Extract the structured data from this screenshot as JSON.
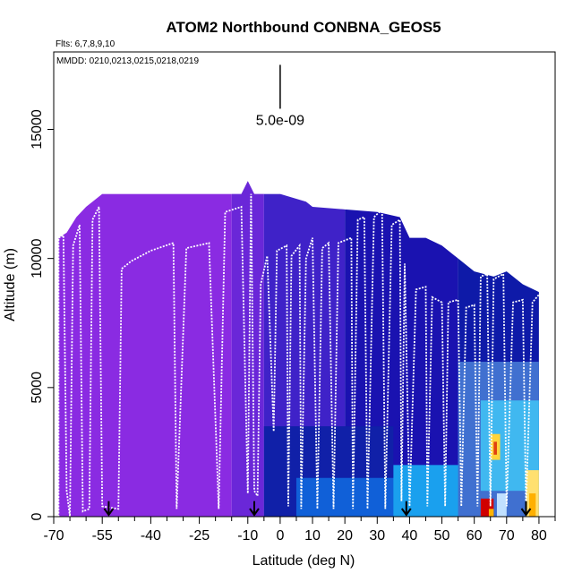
{
  "chart_data": {
    "type": "heatmap",
    "title": "ATOM2 Northbound CONBNA_GEOS5",
    "flights_note": "Flts: 6,7,8,9,10",
    "dates_note": "MMDD: 0210,0213,0215,0218,0219",
    "xlabel": "Latitude (deg N)",
    "ylabel": "Altitude (m)",
    "xlim": [
      -70,
      85
    ],
    "ylim": [
      0,
      18000
    ],
    "x_ticks": [
      -70,
      -55,
      -40,
      -25,
      -10,
      0,
      10,
      20,
      30,
      40,
      50,
      60,
      70,
      80
    ],
    "x_ticks_minor": [
      -65,
      -60,
      -50,
      -45,
      -35,
      -30,
      -20,
      -15,
      -5,
      5,
      15,
      25,
      35,
      45,
      55,
      65,
      75,
      85
    ],
    "y_ticks": [
      0,
      5000,
      10000,
      15000
    ],
    "scale_label": "5.0e-09",
    "scale_bar": {
      "lat": 0,
      "alt_top": 17500,
      "alt_bottom": 15800
    },
    "flight_markers_lat": [
      -53,
      -8,
      39,
      76
    ],
    "curtain_ceiling": [
      [
        -68.5,
        10800
      ],
      [
        -66,
        11000
      ],
      [
        -63,
        11600
      ],
      [
        -60,
        12000
      ],
      [
        -55,
        12500
      ],
      [
        -40,
        12500
      ],
      [
        -25,
        12500
      ],
      [
        -12,
        12500
      ],
      [
        -10,
        13000
      ],
      [
        -8,
        12500
      ],
      [
        0,
        12500
      ],
      [
        8,
        12200
      ],
      [
        10,
        12000
      ],
      [
        20,
        11900
      ],
      [
        30,
        11800
      ],
      [
        37,
        11600
      ],
      [
        40,
        10800
      ],
      [
        45,
        10800
      ],
      [
        50,
        10500
      ],
      [
        55,
        10000
      ],
      [
        60,
        9500
      ],
      [
        66,
        9300
      ],
      [
        70,
        9500
      ],
      [
        75,
        9000
      ],
      [
        80,
        8700
      ]
    ],
    "color_regions": [
      {
        "lat": [
          -68.5,
          -15
        ],
        "alt": [
          0,
          12500
        ],
        "color": "#8a2be2"
      },
      {
        "lat": [
          -15,
          -5
        ],
        "alt": [
          0,
          13000
        ],
        "color": "#6a27d8"
      },
      {
        "lat": [
          -5,
          20
        ],
        "alt": [
          0,
          12500
        ],
        "color": "#3f22c8"
      },
      {
        "lat": [
          20,
          55
        ],
        "alt": [
          0,
          11900
        ],
        "color": "#1a12b0"
      },
      {
        "lat": [
          55,
          80
        ],
        "alt": [
          0,
          10000
        ],
        "color": "#0e1aa8"
      },
      {
        "lat": [
          -5,
          35
        ],
        "alt": [
          0,
          3500
        ],
        "color": "#1020a8"
      },
      {
        "lat": [
          5,
          60
        ],
        "alt": [
          0,
          1500
        ],
        "color": "#1060d8"
      },
      {
        "lat": [
          35,
          80
        ],
        "alt": [
          0,
          2000
        ],
        "color": "#1aa0ee"
      },
      {
        "lat": [
          55,
          80
        ],
        "alt": [
          0,
          6000
        ],
        "color": "#4070d0"
      },
      {
        "lat": [
          62,
          80
        ],
        "alt": [
          1000,
          4500
        ],
        "color": "#40b8f0"
      },
      {
        "lat": [
          65,
          68
        ],
        "alt": [
          2200,
          3200
        ],
        "color": "#ffd43a"
      },
      {
        "lat": [
          66,
          67
        ],
        "alt": [
          2400,
          2900
        ],
        "color": "#e04010"
      },
      {
        "lat": [
          62,
          66
        ],
        "alt": [
          0,
          700
        ],
        "color": "#d00000"
      },
      {
        "lat": [
          64.5,
          66
        ],
        "alt": [
          0,
          300
        ],
        "color": "#ffb300"
      },
      {
        "lat": [
          67,
          70
        ],
        "alt": [
          0,
          900
        ],
        "color": "#c0e0ff"
      },
      {
        "lat": [
          76,
          80
        ],
        "alt": [
          0,
          1800
        ],
        "color": "#ffe070"
      },
      {
        "lat": [
          77,
          79
        ],
        "alt": [
          0,
          900
        ],
        "color": "#ffb000"
      }
    ],
    "flight_track": [
      [
        -68.5,
        0
      ],
      [
        -68.5,
        10800
      ],
      [
        -67,
        10900
      ],
      [
        -66,
        1000
      ],
      [
        -65,
        0
      ],
      [
        -64,
        10500
      ],
      [
        -62,
        11300
      ],
      [
        -61,
        200
      ],
      [
        -59,
        300
      ],
      [
        -58,
        11500
      ],
      [
        -56,
        12000
      ],
      [
        -55,
        400
      ],
      [
        -50,
        300
      ],
      [
        -49,
        9600
      ],
      [
        -46,
        9900
      ],
      [
        -40,
        10300
      ],
      [
        -33,
        10600
      ],
      [
        -32,
        300
      ],
      [
        -29,
        10400
      ],
      [
        -22,
        10600
      ],
      [
        -19,
        300
      ],
      [
        -17,
        11800
      ],
      [
        -12,
        12000
      ],
      [
        -10,
        900
      ],
      [
        -9,
        12500
      ],
      [
        -8,
        1000
      ],
      [
        -7,
        800
      ],
      [
        -6,
        9000
      ],
      [
        -4,
        10100
      ],
      [
        -2,
        3300
      ],
      [
        -1,
        10300
      ],
      [
        2,
        10500
      ],
      [
        2.5,
        400
      ],
      [
        3.5,
        10100
      ],
      [
        6,
        10500
      ],
      [
        6.5,
        300
      ],
      [
        8,
        10000
      ],
      [
        10,
        10800
      ],
      [
        11.5,
        300
      ],
      [
        13,
        10400
      ],
      [
        15,
        10600
      ],
      [
        16.5,
        300
      ],
      [
        18,
        10600
      ],
      [
        22,
        10800
      ],
      [
        22.5,
        300
      ],
      [
        24,
        11500
      ],
      [
        26,
        11600
      ],
      [
        27,
        300
      ],
      [
        29,
        11600
      ],
      [
        31.5,
        11900
      ],
      [
        32.5,
        300
      ],
      [
        34.5,
        11300
      ],
      [
        37,
        11500
      ],
      [
        37.5,
        600
      ],
      [
        38.5,
        9800
      ],
      [
        40,
        400
      ],
      [
        42,
        8800
      ],
      [
        45,
        8900
      ],
      [
        45.5,
        400
      ],
      [
        47,
        8500
      ],
      [
        50,
        8300
      ],
      [
        51,
        400
      ],
      [
        52,
        8300
      ],
      [
        55,
        8400
      ],
      [
        56,
        400
      ],
      [
        57.5,
        8100
      ],
      [
        60,
        8200
      ],
      [
        61,
        400
      ],
      [
        62,
        9300
      ],
      [
        64,
        9400
      ],
      [
        65,
        400
      ],
      [
        66,
        9200
      ],
      [
        69,
        9400
      ],
      [
        70,
        400
      ],
      [
        72,
        8300
      ],
      [
        75,
        8400
      ],
      [
        76,
        400
      ],
      [
        78,
        8300
      ],
      [
        80,
        8600
      ]
    ]
  }
}
